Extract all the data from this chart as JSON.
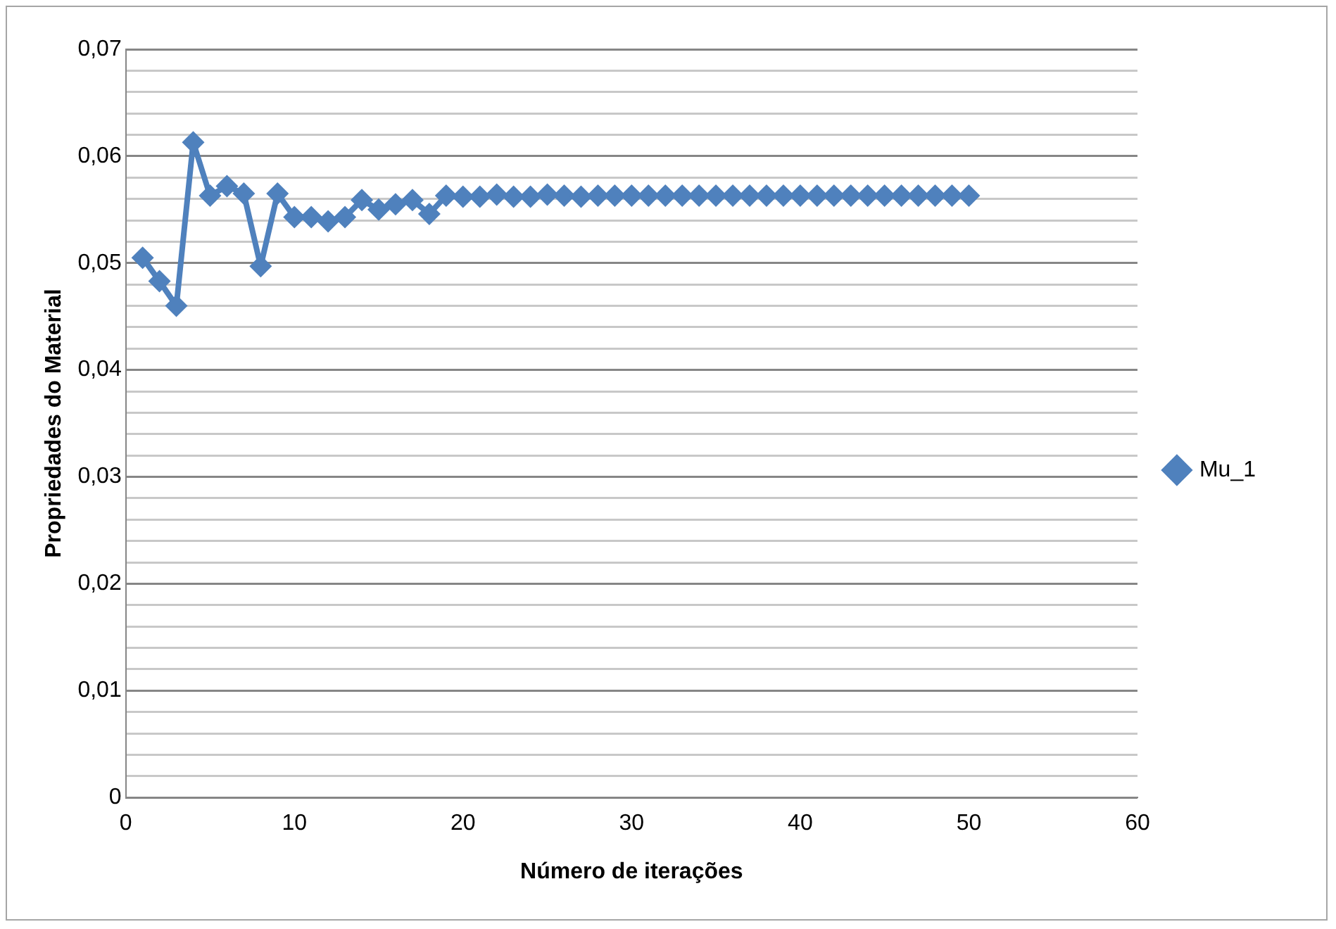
{
  "chart_data": {
    "type": "line",
    "xlabel": "Número de iterações",
    "ylabel": "Propriedades do Material",
    "x": [
      1,
      2,
      3,
      4,
      5,
      6,
      7,
      8,
      9,
      10,
      11,
      12,
      13,
      14,
      15,
      16,
      17,
      18,
      19,
      20,
      21,
      22,
      23,
      24,
      25,
      26,
      27,
      28,
      29,
      30,
      31,
      32,
      33,
      34,
      35,
      36,
      37,
      38,
      39,
      40,
      41,
      42,
      43,
      44,
      45,
      46,
      47,
      48,
      49,
      50
    ],
    "series": [
      {
        "name": "Mu_1",
        "color": "#4f81bd",
        "values": [
          0.0505,
          0.0483,
          0.046,
          0.0613,
          0.0563,
          0.0572,
          0.0565,
          0.0497,
          0.0565,
          0.0543,
          0.0543,
          0.0539,
          0.0543,
          0.0559,
          0.055,
          0.0555,
          0.0559,
          0.0546,
          0.0563,
          0.0562,
          0.0562,
          0.0564,
          0.0562,
          0.0562,
          0.0564,
          0.0563,
          0.0562,
          0.0563,
          0.0563,
          0.0563,
          0.0563,
          0.0563,
          0.0563,
          0.0563,
          0.0563,
          0.0563,
          0.0563,
          0.0563,
          0.0563,
          0.0563,
          0.0563,
          0.0563,
          0.0563,
          0.0563,
          0.0563,
          0.0563,
          0.0563,
          0.0563,
          0.0563,
          0.0563
        ]
      }
    ],
    "xlim": [
      0,
      60
    ],
    "xticks": [
      0,
      10,
      20,
      30,
      40,
      50,
      60
    ],
    "ylim": [
      0,
      0.07
    ],
    "yticks": [
      {
        "value": 0,
        "label": "0"
      },
      {
        "value": 0.002,
        "label": null
      },
      {
        "value": 0.004,
        "label": null
      },
      {
        "value": 0.006,
        "label": null
      },
      {
        "value": 0.008,
        "label": null
      },
      {
        "value": 0.01,
        "label": "0,01"
      },
      {
        "value": 0.012,
        "label": null
      },
      {
        "value": 0.014,
        "label": null
      },
      {
        "value": 0.016,
        "label": null
      },
      {
        "value": 0.018,
        "label": null
      },
      {
        "value": 0.02,
        "label": "0,02"
      },
      {
        "value": 0.022,
        "label": null
      },
      {
        "value": 0.024,
        "label": null
      },
      {
        "value": 0.026,
        "label": null
      },
      {
        "value": 0.028,
        "label": null
      },
      {
        "value": 0.03,
        "label": "0,03"
      },
      {
        "value": 0.032,
        "label": null
      },
      {
        "value": 0.034,
        "label": null
      },
      {
        "value": 0.036,
        "label": null
      },
      {
        "value": 0.038,
        "label": null
      },
      {
        "value": 0.04,
        "label": "0,04"
      },
      {
        "value": 0.042,
        "label": null
      },
      {
        "value": 0.044,
        "label": null
      },
      {
        "value": 0.046,
        "label": null
      },
      {
        "value": 0.048,
        "label": null
      },
      {
        "value": 0.05,
        "label": "0,05"
      },
      {
        "value": 0.052,
        "label": null
      },
      {
        "value": 0.054,
        "label": null
      },
      {
        "value": 0.056,
        "label": null
      },
      {
        "value": 0.058,
        "label": null
      },
      {
        "value": 0.06,
        "label": "0,06"
      },
      {
        "value": 0.062,
        "label": null
      },
      {
        "value": 0.064,
        "label": null
      },
      {
        "value": 0.066,
        "label": null
      },
      {
        "value": 0.068,
        "label": null
      },
      {
        "value": 0.07,
        "label": "0,07"
      }
    ],
    "grid": "y",
    "legend": "right",
    "marker": "diamond",
    "line_style": "solid"
  }
}
